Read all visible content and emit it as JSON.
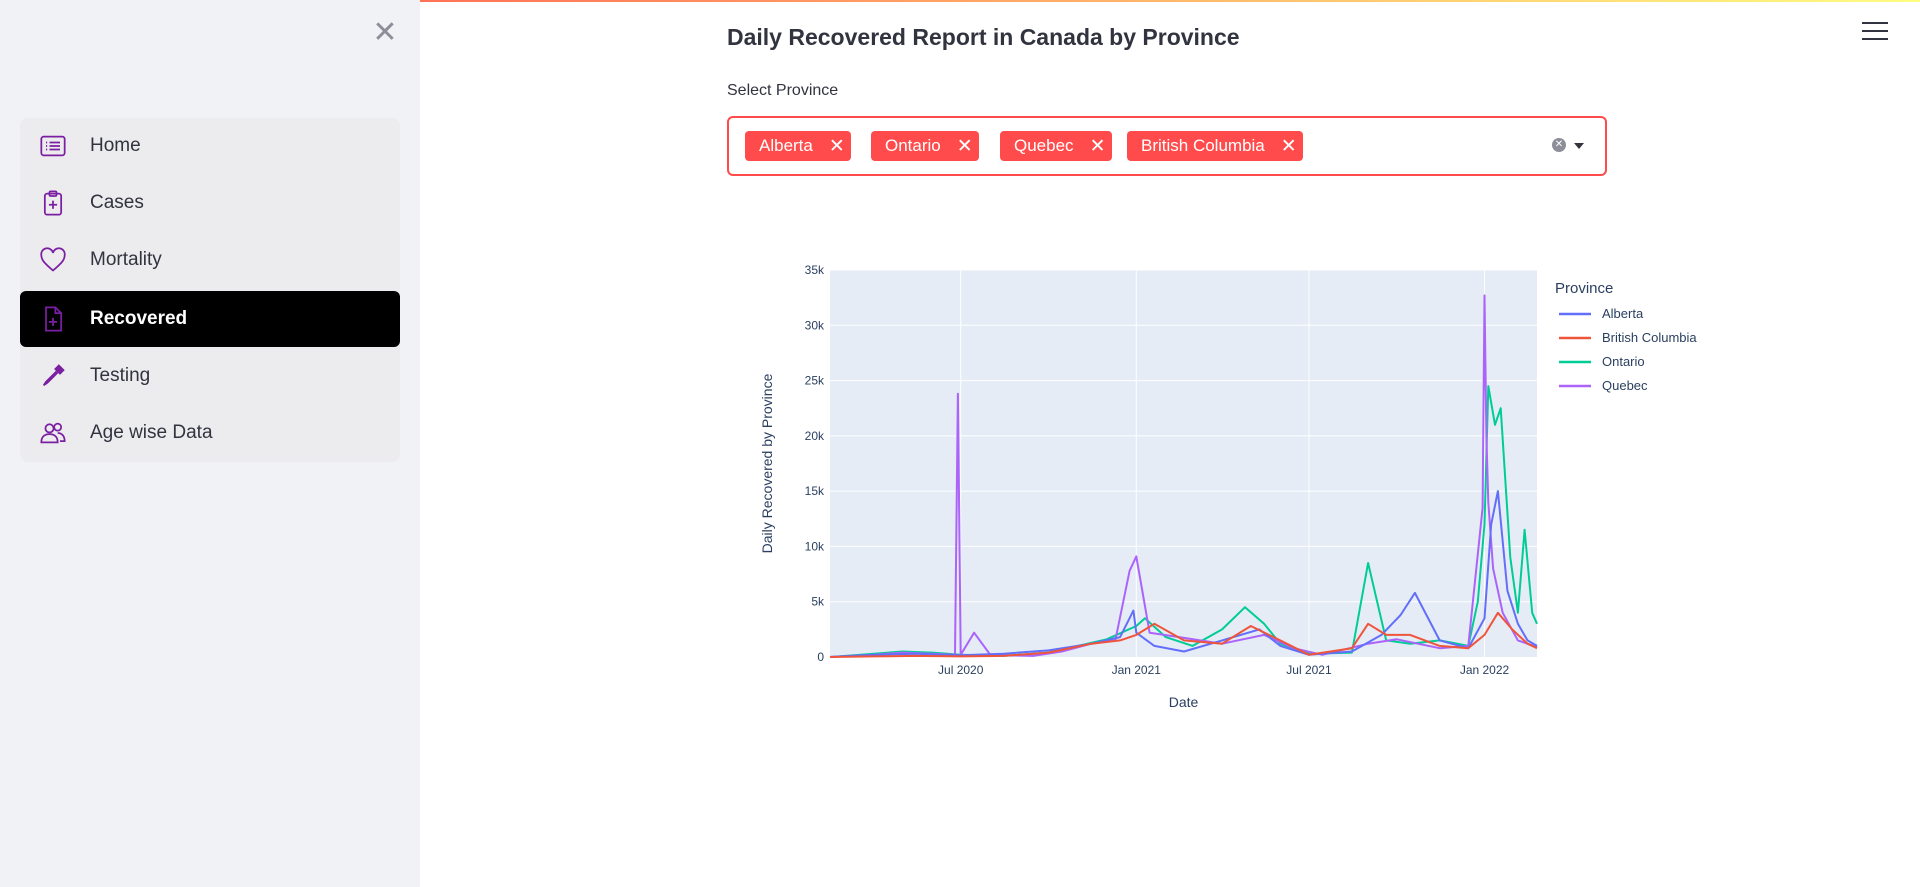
{
  "sidebar": {
    "close_icon": "close-icon",
    "items": [
      {
        "label": "Home",
        "icon": "list-icon",
        "active": false
      },
      {
        "label": "Cases",
        "icon": "clipboard-plus-icon",
        "active": false
      },
      {
        "label": "Mortality",
        "icon": "heart-icon",
        "active": false
      },
      {
        "label": "Recovered",
        "icon": "file-plus-icon",
        "active": true
      },
      {
        "label": "Testing",
        "icon": "eyedropper-icon",
        "active": false
      },
      {
        "label": "Age wise Data",
        "icon": "people-icon",
        "active": false
      }
    ],
    "accent_color": "#7b1fa2"
  },
  "header": {
    "menu_icon": "hamburger-icon"
  },
  "main": {
    "title": "Daily Recovered Report in Canada by Province",
    "select_label": "Select Province",
    "selected": [
      "Alberta",
      "Ontario",
      "Quebec",
      "British Columbia"
    ],
    "accent_color": "#ff4b4b"
  },
  "chart_data": {
    "type": "line",
    "title": "",
    "xlabel": "Date",
    "ylabel": "Daily Recovered by Province",
    "legend_title": "Province",
    "legend_placement": "right",
    "grid": true,
    "ylim": [
      0,
      35000
    ],
    "yticks": [
      0,
      5000,
      10000,
      15000,
      20000,
      25000,
      30000,
      35000
    ],
    "ytick_labels": [
      "0",
      "5k",
      "10k",
      "15k",
      "20k",
      "25k",
      "30k",
      "35k"
    ],
    "xlim": [
      "2020-02-15",
      "2022-02-25"
    ],
    "xticks": [
      "2020-07-01",
      "2021-01-01",
      "2021-07-01",
      "2022-01-01"
    ],
    "xtick_labels": [
      "Jul 2020",
      "Jan 2021",
      "Jul 2021",
      "Jan 2022"
    ],
    "series": [
      {
        "name": "Alberta",
        "color": "#636efa",
        "x": [
          "2020-02-15",
          "2020-04-01",
          "2020-05-15",
          "2020-07-01",
          "2020-08-15",
          "2020-10-01",
          "2020-11-15",
          "2020-12-15",
          "2020-12-29",
          "2021-01-01",
          "2021-01-20",
          "2021-02-20",
          "2021-04-01",
          "2021-05-10",
          "2021-06-01",
          "2021-07-01",
          "2021-08-15",
          "2021-09-15",
          "2021-10-05",
          "2021-10-20",
          "2021-11-15",
          "2021-12-15",
          "2022-01-01",
          "2022-01-08",
          "2022-01-15",
          "2022-01-25",
          "2022-02-05",
          "2022-02-15",
          "2022-02-25"
        ],
        "y": [
          0,
          200,
          300,
          150,
          300,
          600,
          1200,
          1800,
          4200,
          2200,
          1000,
          500,
          1500,
          2500,
          1000,
          200,
          500,
          2000,
          3800,
          5800,
          1500,
          800,
          3500,
          12000,
          15000,
          6000,
          3000,
          1500,
          1000
        ]
      },
      {
        "name": "British Columbia",
        "color": "#ef553b",
        "x": [
          "2020-02-15",
          "2020-04-01",
          "2020-05-15",
          "2020-07-01",
          "2020-08-15",
          "2020-10-01",
          "2020-11-15",
          "2020-12-15",
          "2021-01-01",
          "2021-01-20",
          "2021-02-20",
          "2021-04-01",
          "2021-05-01",
          "2021-06-01",
          "2021-07-01",
          "2021-08-15",
          "2021-09-01",
          "2021-09-20",
          "2021-10-15",
          "2021-11-15",
          "2021-12-15",
          "2022-01-01",
          "2022-01-15",
          "2022-01-30",
          "2022-02-15",
          "2022-02-25"
        ],
        "y": [
          0,
          50,
          100,
          50,
          100,
          400,
          1200,
          1500,
          2000,
          3000,
          1500,
          1200,
          2800,
          1500,
          200,
          800,
          3000,
          2000,
          2000,
          1000,
          800,
          2000,
          4000,
          2500,
          1200,
          800
        ]
      },
      {
        "name": "Ontario",
        "color": "#00cc96",
        "x": [
          "2020-02-15",
          "2020-04-01",
          "2020-05-01",
          "2020-06-01",
          "2020-07-01",
          "2020-08-15",
          "2020-10-01",
          "2020-11-01",
          "2020-12-01",
          "2021-01-01",
          "2021-01-10",
          "2021-02-01",
          "2021-03-01",
          "2021-04-01",
          "2021-04-25",
          "2021-05-15",
          "2021-06-01",
          "2021-07-01",
          "2021-08-15",
          "2021-09-01",
          "2021-09-20",
          "2021-10-15",
          "2021-11-15",
          "2021-12-15",
          "2021-12-25",
          "2022-01-01",
          "2022-01-05",
          "2022-01-12",
          "2022-01-18",
          "2022-01-28",
          "2022-02-05",
          "2022-02-12",
          "2022-02-20",
          "2022-02-25"
        ],
        "y": [
          0,
          300,
          500,
          400,
          200,
          100,
          400,
          1000,
          1600,
          2800,
          3500,
          1800,
          1000,
          2500,
          4500,
          3000,
          1200,
          300,
          400,
          8500,
          1500,
          1200,
          1500,
          1000,
          5000,
          12000,
          24500,
          21000,
          22500,
          9000,
          4000,
          11500,
          4000,
          3000
        ]
      },
      {
        "name": "Quebec",
        "color": "#ab63fa",
        "x": [
          "2020-02-15",
          "2020-04-01",
          "2020-05-01",
          "2020-06-01",
          "2020-06-25",
          "2020-06-28",
          "2020-07-01",
          "2020-07-15",
          "2020-08-01",
          "2020-09-15",
          "2020-10-15",
          "2020-11-15",
          "2020-12-10",
          "2020-12-25",
          "2021-01-01",
          "2021-01-15",
          "2021-02-15",
          "2021-04-01",
          "2021-05-15",
          "2021-06-15",
          "2021-07-15",
          "2021-09-01",
          "2021-10-01",
          "2021-11-15",
          "2021-12-15",
          "2021-12-30",
          "2022-01-01",
          "2022-01-03",
          "2022-01-05",
          "2022-01-10",
          "2022-01-20",
          "2022-02-05",
          "2022-02-25"
        ],
        "y": [
          0,
          200,
          400,
          300,
          200,
          23800,
          200,
          2200,
          200,
          100,
          500,
          1200,
          1500,
          7800,
          9100,
          2200,
          1800,
          1200,
          2000,
          800,
          200,
          1200,
          1600,
          800,
          1000,
          13500,
          32700,
          20000,
          14000,
          8000,
          4000,
          1500,
          900
        ]
      }
    ]
  }
}
